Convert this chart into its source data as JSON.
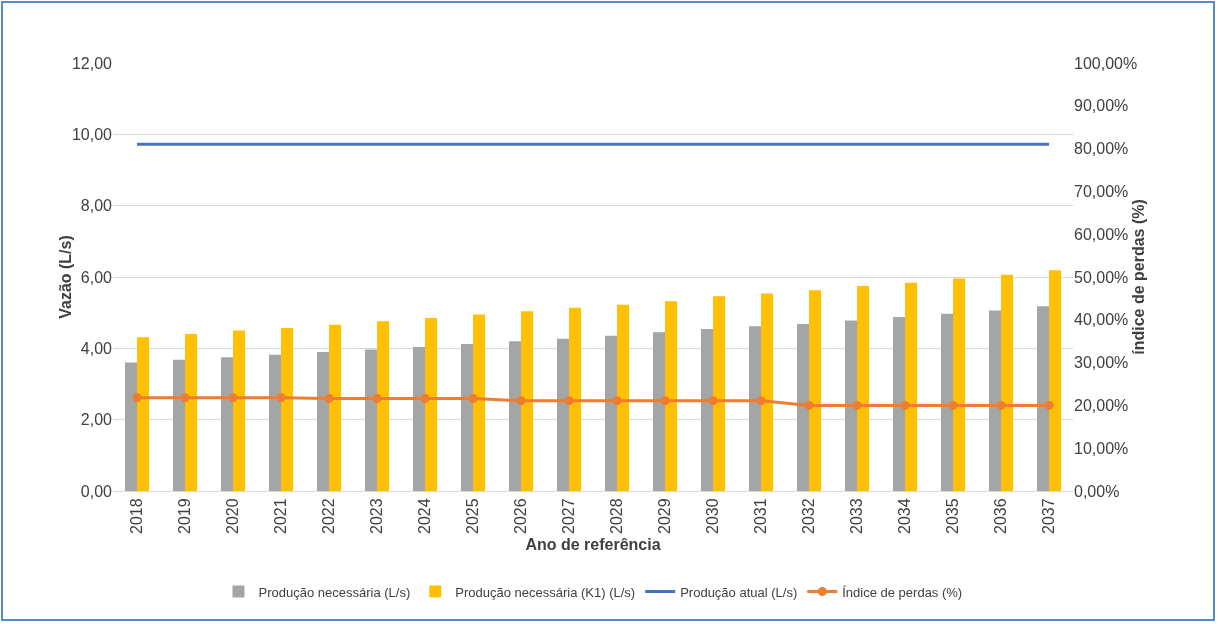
{
  "chart_data": {
    "type": "bar",
    "xlabel": "Ano de referência",
    "ylabel": "Vazão (L/s)",
    "y2label": "índice de perdas (%)",
    "categories": [
      "2018",
      "2019",
      "2020",
      "2021",
      "2022",
      "2023",
      "2024",
      "2025",
      "2026",
      "2027",
      "2028",
      "2029",
      "2030",
      "2031",
      "2032",
      "2033",
      "2034",
      "2035",
      "2036",
      "2037"
    ],
    "series": [
      {
        "name": "Produção necessária (L/s)",
        "color": "#a5a5a5",
        "values": [
          3.6,
          3.68,
          3.75,
          3.82,
          3.9,
          3.97,
          4.04,
          4.12,
          4.2,
          4.27,
          4.35,
          4.45,
          4.54,
          4.62,
          4.68,
          4.78,
          4.88,
          4.97,
          5.06,
          5.18
        ]
      },
      {
        "name": "Produção necessária (K1) (L/s)",
        "color": "#ffc000",
        "values": [
          4.31,
          4.4,
          4.5,
          4.57,
          4.66,
          4.76,
          4.85,
          4.95,
          5.04,
          5.14,
          5.22,
          5.32,
          5.46,
          5.54,
          5.63,
          5.75,
          5.84,
          5.96,
          6.06,
          6.19
        ]
      },
      {
        "name": "Produção atual (L/s)",
        "type": "line",
        "color": "#4472c4",
        "marker": "none",
        "values": [
          9.72,
          9.72,
          9.72,
          9.72,
          9.72,
          9.72,
          9.72,
          9.72,
          9.72,
          9.72,
          9.72,
          9.72,
          9.72,
          9.72,
          9.72,
          9.72,
          9.72,
          9.72,
          9.72,
          9.72
        ]
      },
      {
        "name": "Índice de perdas (%)",
        "type": "line",
        "color": "#ed7d31",
        "marker": "circle",
        "axis": "y2",
        "values": [
          21.8,
          21.8,
          21.8,
          21.8,
          21.6,
          21.6,
          21.6,
          21.6,
          21.1,
          21.1,
          21.1,
          21.1,
          21.1,
          21.1,
          20.0,
          20.0,
          20.0,
          20.0,
          20.0,
          20.0
        ]
      }
    ],
    "ylim": [
      0,
      12
    ],
    "yticks": [
      {
        "value": 0,
        "label": "0,00"
      },
      {
        "value": 2,
        "label": "2,00"
      },
      {
        "value": 4,
        "label": "4,00"
      },
      {
        "value": 6,
        "label": "6,00"
      },
      {
        "value": 8,
        "label": "8,00"
      },
      {
        "value": 10,
        "label": "10,00"
      },
      {
        "value": 12,
        "label": "12,00"
      }
    ],
    "y2lim": [
      0,
      100
    ],
    "y2ticks": [
      {
        "value": 0,
        "label": "0,00%"
      },
      {
        "value": 10,
        "label": "10,00%"
      },
      {
        "value": 20,
        "label": "20,00%"
      },
      {
        "value": 30,
        "label": "30,00%"
      },
      {
        "value": 40,
        "label": "40,00%"
      },
      {
        "value": 50,
        "label": "50,00%"
      },
      {
        "value": 60,
        "label": "60,00%"
      },
      {
        "value": 70,
        "label": "70,00%"
      },
      {
        "value": 80,
        "label": "80,00%"
      },
      {
        "value": 90,
        "label": "90,00%"
      },
      {
        "value": 100,
        "label": "100,00%"
      }
    ],
    "grid": "y",
    "legend": "bottom"
  }
}
